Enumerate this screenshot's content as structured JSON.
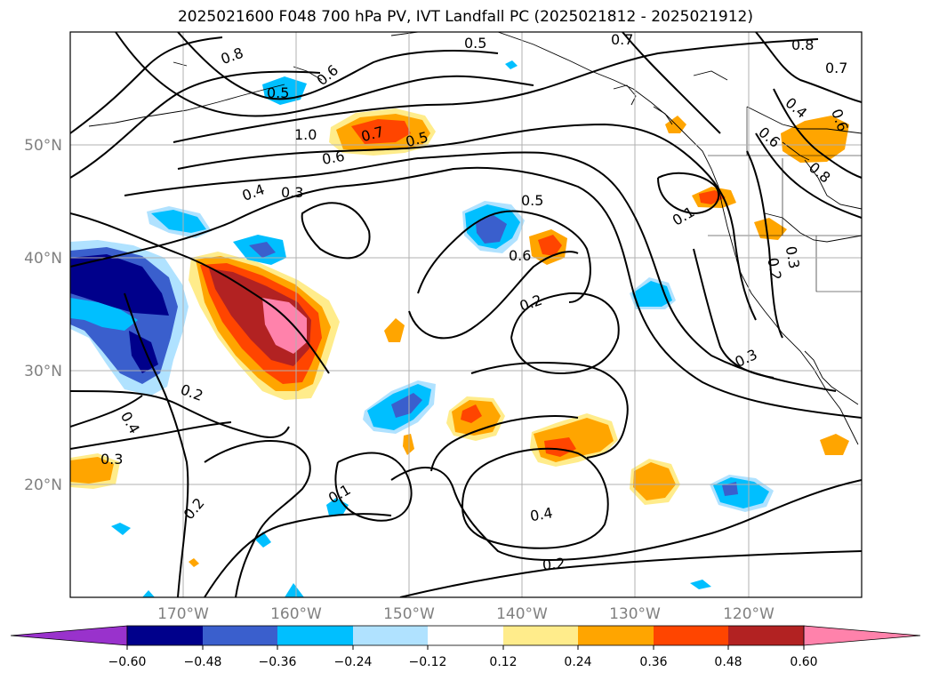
{
  "title": "2025021600 F048 700 hPa PV, IVT Landfall PC (2025021812 - 2025021912)",
  "lat_labels": [
    "50°N",
    "40°N",
    "30°N",
    "20°N"
  ],
  "lat_values": [
    50,
    40,
    30,
    20
  ],
  "lon_labels": [
    "170°W",
    "160°W",
    "150°W",
    "140°W",
    "130°W",
    "120°W"
  ],
  "lon_values": [
    -170,
    -160,
    -150,
    -140,
    -130,
    -120
  ],
  "extent": {
    "lon": [
      -180,
      -110
    ],
    "lat": [
      10,
      60
    ]
  },
  "colorbar": {
    "tick_labels": [
      "−0.60",
      "−0.48",
      "−0.36",
      "−0.24",
      "−0.12",
      "0.12",
      "0.24",
      "0.36",
      "0.48",
      "0.60"
    ],
    "levels": [
      -0.6,
      -0.48,
      -0.36,
      -0.24,
      -0.12,
      0.12,
      0.24,
      0.36,
      0.48,
      0.6
    ],
    "colors": [
      "#9932cc",
      "#00008b",
      "#3a5fcd",
      "#00bfff",
      "#b0e2ff",
      "#ffffff",
      "#ffec8b",
      "#ffa500",
      "#ff4500",
      "#b22222",
      "#ff82ab"
    ]
  },
  "contour_labels": [
    "0.8",
    "0.5",
    "0.7",
    "0.8",
    "0.7",
    "0.6",
    "0.5",
    "1.0",
    "0.7",
    "0.5",
    "0.6",
    "0.4",
    "0.3",
    "0.5",
    "0.6",
    "0.6",
    "0.8",
    "0.4",
    "0.6",
    "0.2",
    "0.2",
    "0.3",
    "0.2",
    "0.4",
    "0.3",
    "0.2",
    "0.1",
    "0.4",
    "0.2",
    "0.3",
    "0.1"
  ]
}
